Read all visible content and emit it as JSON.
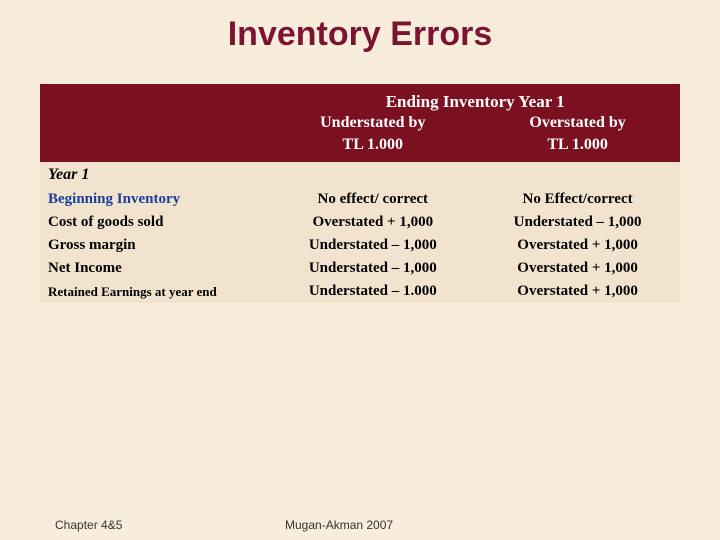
{
  "title": {
    "text": "Inventory Errors",
    "color": "#7a1430"
  },
  "header": {
    "super": "Ending Inventory Year 1",
    "col1_label": "Understated by",
    "col1_amount": "TL 1.000",
    "col2_label": "Overstated by",
    "col2_amount": "TL 1.000",
    "bg_color": "#7a1020"
  },
  "year_label": "Year 1",
  "rows": [
    {
      "label": "Beginning Inventory",
      "c1": "No effect/ correct",
      "c2": "No Effect/correct",
      "blue": true,
      "small": false
    },
    {
      "label": "Cost of goods sold",
      "c1": "Overstated + 1,000",
      "c2": "Understated – 1,000",
      "blue": false,
      "small": false
    },
    {
      "label": "Gross margin",
      "c1": "Understated – 1,000",
      "c2": "Overstated + 1,000",
      "blue": false,
      "small": false
    },
    {
      "label": "Net Income",
      "c1": "Understated – 1,000",
      "c2": "Overstated + 1,000",
      "blue": false,
      "small": false
    },
    {
      "label": "Retained Earnings at year end",
      "c1": "Understated – 1.000",
      "c2": "Overstated + 1,000",
      "blue": false,
      "small": true
    }
  ],
  "footer": {
    "left": "Chapter 4&5",
    "center": "Mugan-Akman 2007"
  },
  "styling": {
    "page_bg": "#f8ecda",
    "table_bg": "#f2e3ce",
    "blue_text": "#1a3e9c",
    "title_fontsize": 34,
    "body_fontsize": 15
  }
}
